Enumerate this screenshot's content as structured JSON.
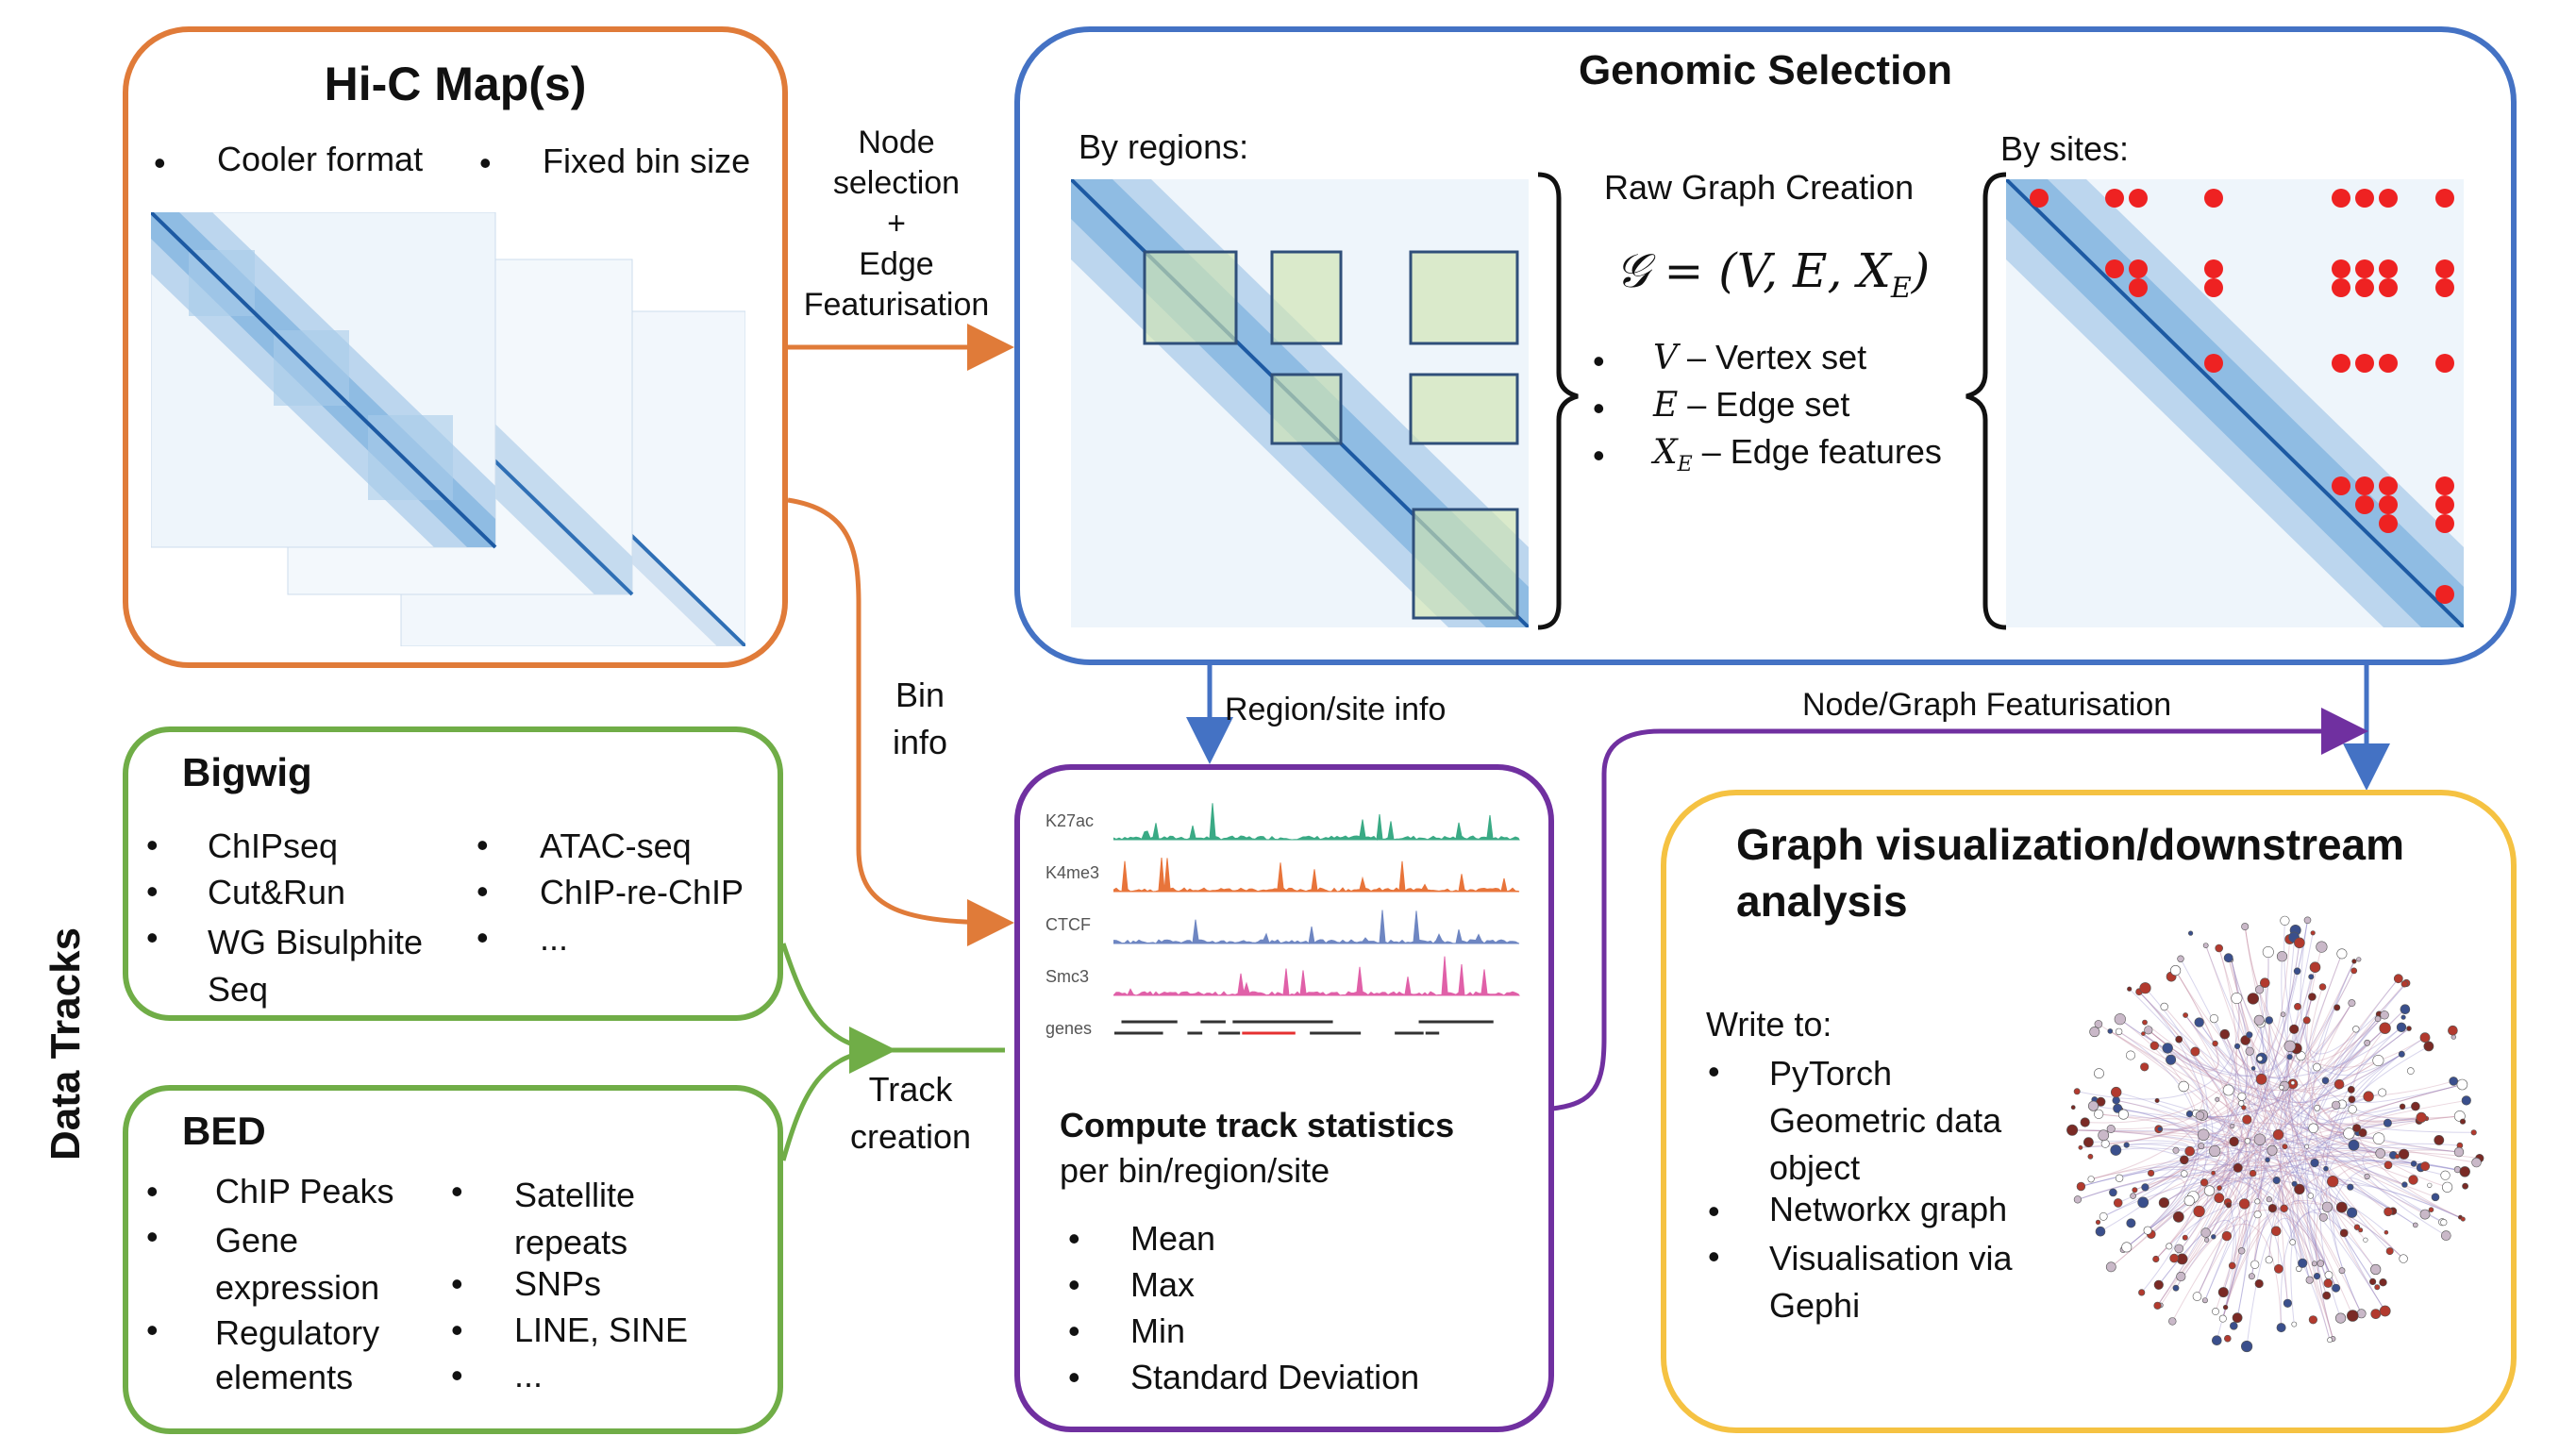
{
  "hic": {
    "title": "Hi-C Map(s)",
    "bullets": [
      "Cooler format",
      "Fixed bin size"
    ]
  },
  "genomic": {
    "title": "Genomic Selection",
    "by_regions": "By regions:",
    "by_sites": "By sites:",
    "raw_graph": "Raw Graph Creation",
    "formula": "𝒢 = (V, E, X",
    "formula_sub": "E",
    "formula_close": ")",
    "items": [
      {
        "sym": "V",
        "sub": "",
        "text": " – Vertex set"
      },
      {
        "sym": "E",
        "sub": "",
        "text": " – Edge set"
      },
      {
        "sym": "X",
        "sub": "E",
        "text": " – Edge  features"
      }
    ]
  },
  "arrows": {
    "node_selection": [
      "Node",
      "selection",
      "+",
      "Edge",
      "Featurisation"
    ],
    "bin_info": [
      "Bin",
      "info"
    ],
    "region_site_info": "Region/site info",
    "node_graph_feat": "Node/Graph Featurisation",
    "track_creation": [
      "Track",
      "creation"
    ]
  },
  "side_label": "Data Tracks",
  "bigwig": {
    "title": "Bigwig",
    "left": [
      "ChIPseq",
      "Cut&Run",
      "WG Bisulphite Seq"
    ],
    "right": [
      "ATAC-seq",
      "ChIP-re-ChIP",
      "..."
    ]
  },
  "bed": {
    "title": "BED",
    "left": [
      "ChIP Peaks",
      "Gene expression",
      "Regulatory elements"
    ],
    "right": [
      "Satellite repeats",
      "SNPs",
      "LINE, SINE",
      "..."
    ]
  },
  "tracks": {
    "names": [
      "K27ac",
      "K4me3",
      "CTCF",
      "Smc3",
      "genes"
    ],
    "colors": [
      "#3aaa85",
      "#e8743a",
      "#6e86c2",
      "#e060a8",
      "#333333"
    ],
    "title": "Compute track statistics",
    "subtitle": "per bin/region/site",
    "stats": [
      "Mean",
      "Max",
      "Min",
      "Standard Deviation"
    ]
  },
  "graphviz": {
    "title_line1": "Graph visualization/downstream",
    "title_line2": "analysis",
    "write_to": "Write to:",
    "items": [
      "PyTorch Geometric data object",
      "Networkx graph",
      "Visualisation via Gephi"
    ]
  },
  "colors": {
    "orange": "#e07b39",
    "blue": "#4472c4",
    "green": "#70ad47",
    "purple": "#7030a0",
    "yellow": "#f5c242",
    "site_dot": "#ee2222"
  }
}
